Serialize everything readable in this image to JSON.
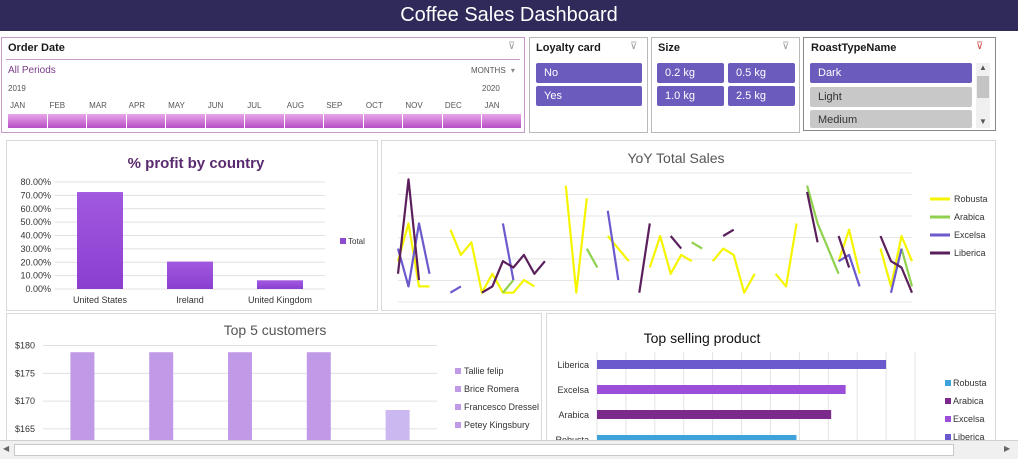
{
  "header": {
    "title": "Coffee Sales Dashboard"
  },
  "order_date": {
    "title": "Order Date",
    "all_periods": "All Periods",
    "level": "MONTHS",
    "year_left": "2019",
    "year_right": "2020",
    "months": [
      "JAN",
      "FEB",
      "MAR",
      "APR",
      "MAY",
      "JUN",
      "JUL",
      "AUG",
      "SEP",
      "OCT",
      "NOV",
      "DEC",
      "JAN"
    ]
  },
  "loyalty": {
    "title": "Loyalty card",
    "items": [
      "No",
      "Yes"
    ]
  },
  "size": {
    "title": "Size",
    "items": [
      "0.2 kg",
      "0.5 kg",
      "1.0 kg",
      "2.5 kg"
    ]
  },
  "roast": {
    "title": "RoastTypeName",
    "items": [
      "Dark",
      "Light",
      "Medium"
    ]
  },
  "chart_data": [
    {
      "type": "bar",
      "title": "% profit by country",
      "categories": [
        "United States",
        "Ireland",
        "United Kingdom"
      ],
      "values": [
        0.725,
        0.205,
        0.065
      ],
      "ylim": [
        0,
        0.8
      ],
      "yticks": [
        "80.00%",
        "70.00%",
        "60.00%",
        "50.00%",
        "40.00%",
        "30.00%",
        "20.00%",
        "10.00%",
        "0.00%"
      ],
      "legend": [
        "Total"
      ],
      "color": "#8e4bd1"
    },
    {
      "type": "line",
      "title": "YoY Total Sales",
      "ylim": [
        0,
        100
      ],
      "series": [
        {
          "name": "Robusta",
          "color": "#f5f500",
          "values": [
            30,
            60,
            10,
            10,
            null,
            55,
            35,
            45,
            5,
            20,
            5,
            5,
            15,
            10,
            null,
            null,
            90,
            5,
            80,
            null,
            50,
            40,
            30,
            null,
            25,
            50,
            20,
            35,
            30,
            null,
            30,
            40,
            35,
            5,
            20,
            null,
            20,
            10,
            60,
            null,
            45,
            null,
            30,
            55,
            20,
            null,
            40,
            10,
            50,
            30
          ]
        },
        {
          "name": "Arabica",
          "color": "#8fd14f",
          "values": [
            null,
            null,
            45,
            null,
            10,
            null,
            null,
            40,
            null,
            null,
            5,
            15,
            null,
            null,
            null,
            45,
            null,
            null,
            40,
            25,
            null,
            null,
            null,
            40,
            null,
            null,
            null,
            null,
            45,
            40,
            null,
            null,
            20,
            null,
            null,
            25,
            null,
            null,
            null,
            90,
            60,
            40,
            20,
            null,
            null,
            null,
            null,
            null,
            40,
            10
          ]
        },
        {
          "name": "Excelsa",
          "color": "#6a5acd",
          "values": [
            40,
            10,
            60,
            20,
            null,
            5,
            10,
            null,
            null,
            null,
            60,
            15,
            null,
            10,
            null,
            80,
            null,
            20,
            null,
            null,
            70,
            15,
            null,
            null,
            null,
            null,
            null,
            50,
            null,
            10,
            null,
            null,
            null,
            45,
            null,
            null,
            null,
            55,
            null,
            20,
            null,
            null,
            30,
            35,
            10,
            null,
            null,
            5,
            40,
            null
          ]
        },
        {
          "name": "Liberica",
          "color": "#5b1f5b",
          "values": [
            20,
            95,
            15,
            null,
            null,
            null,
            null,
            null,
            5,
            10,
            30,
            25,
            35,
            20,
            30,
            null,
            30,
            null,
            null,
            null,
            null,
            null,
            null,
            5,
            60,
            null,
            50,
            40,
            null,
            null,
            null,
            50,
            55,
            null,
            null,
            null,
            null,
            null,
            null,
            85,
            45,
            null,
            50,
            25,
            null,
            null,
            50,
            30,
            25,
            5
          ]
        }
      ],
      "legend": [
        "Robusta",
        "Arabica",
        "Excelsa",
        "Liberica"
      ]
    },
    {
      "type": "bar",
      "title": "Top 5 customers",
      "yticks": [
        "$180",
        "$175",
        "$170",
        "$165"
      ],
      "ylim": [
        163,
        181
      ],
      "values": [
        178.8,
        178.8,
        178.8,
        178.8,
        168.4
      ],
      "series": [
        {
          "name": "Tallie felip",
          "color": "#c09ae6"
        },
        {
          "name": "Brice Romera",
          "color": "#c09ae6"
        },
        {
          "name": "Francesco Dressel",
          "color": "#c09ae6"
        },
        {
          "name": "Petey Kingsbury",
          "color": "#c09ae6"
        },
        {
          "name": "",
          "color": "#cbb8f0"
        }
      ]
    },
    {
      "type": "bar",
      "title": "Top selling product",
      "categories": [
        "Liberica",
        "Excelsa",
        "Arabica",
        "Robusta"
      ],
      "values": [
        100,
        86,
        81,
        69
      ],
      "xlim": [
        0,
        110
      ],
      "colors": [
        "#6a5acd",
        "#9b4fd8",
        "#7b2a8c",
        "#3ea2db"
      ],
      "legend": [
        {
          "name": "Robusta",
          "color": "#3ea2db"
        },
        {
          "name": "Arabica",
          "color": "#7b2a8c"
        },
        {
          "name": "Excelsa",
          "color": "#9b4fd8"
        },
        {
          "name": "Liberica",
          "color": "#6a5acd"
        }
      ]
    }
  ]
}
